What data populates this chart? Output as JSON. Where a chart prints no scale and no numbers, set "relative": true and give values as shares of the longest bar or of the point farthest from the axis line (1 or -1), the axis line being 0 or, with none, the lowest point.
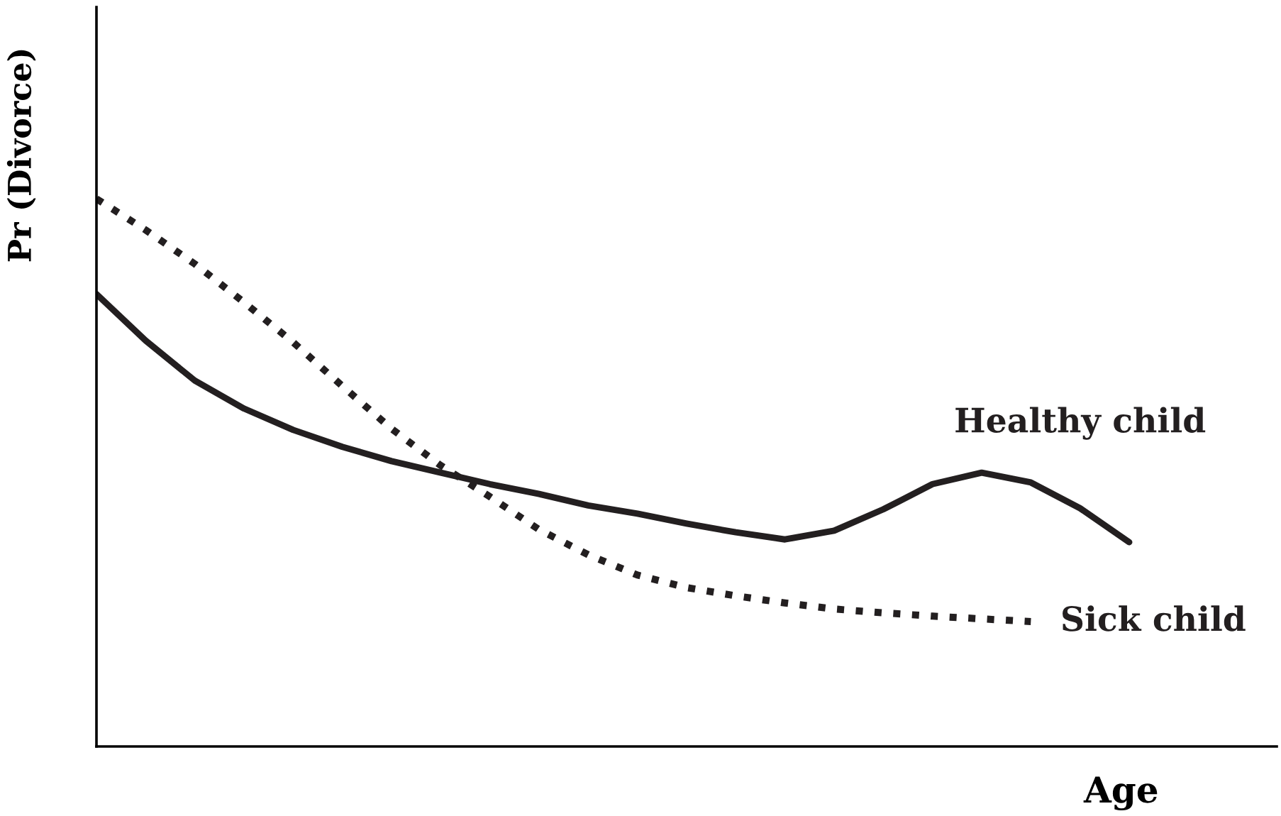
{
  "chart_data": {
    "type": "line",
    "relative": true,
    "xlabel": "Age",
    "ylabel": "Pr (Divorce)",
    "grid": false,
    "legend": false,
    "marker": "none",
    "categories": [
      null,
      null,
      null,
      null,
      null,
      null,
      null,
      null,
      null,
      null,
      null,
      null,
      null,
      null,
      null,
      null,
      null,
      null,
      null,
      null,
      null,
      null,
      null,
      null,
      null
    ],
    "series": [
      {
        "name": "Healthy child",
        "color": "#231f20",
        "line_style": "solid",
        "values": [
          0.826,
          0.741,
          0.668,
          0.617,
          0.578,
          0.547,
          0.521,
          0.5,
          0.479,
          0.461,
          0.44,
          0.425,
          0.407,
          0.391,
          0.378,
          0.394,
          0.433,
          0.479,
          0.5,
          0.482,
          0.435,
          0.373,
          null,
          null,
          null
        ]
      },
      {
        "name": "Sick child",
        "color": "#231f20",
        "line_style": "dotted",
        "values": [
          1,
          0.943,
          0.881,
          0.811,
          0.738,
          0.658,
          0.58,
          0.513,
          0.456,
          0.396,
          0.35,
          0.313,
          0.29,
          0.275,
          0.262,
          0.251,
          0.244,
          0.238,
          0.233,
          0.228,
          null,
          null,
          null,
          null,
          null
        ]
      }
    ]
  }
}
